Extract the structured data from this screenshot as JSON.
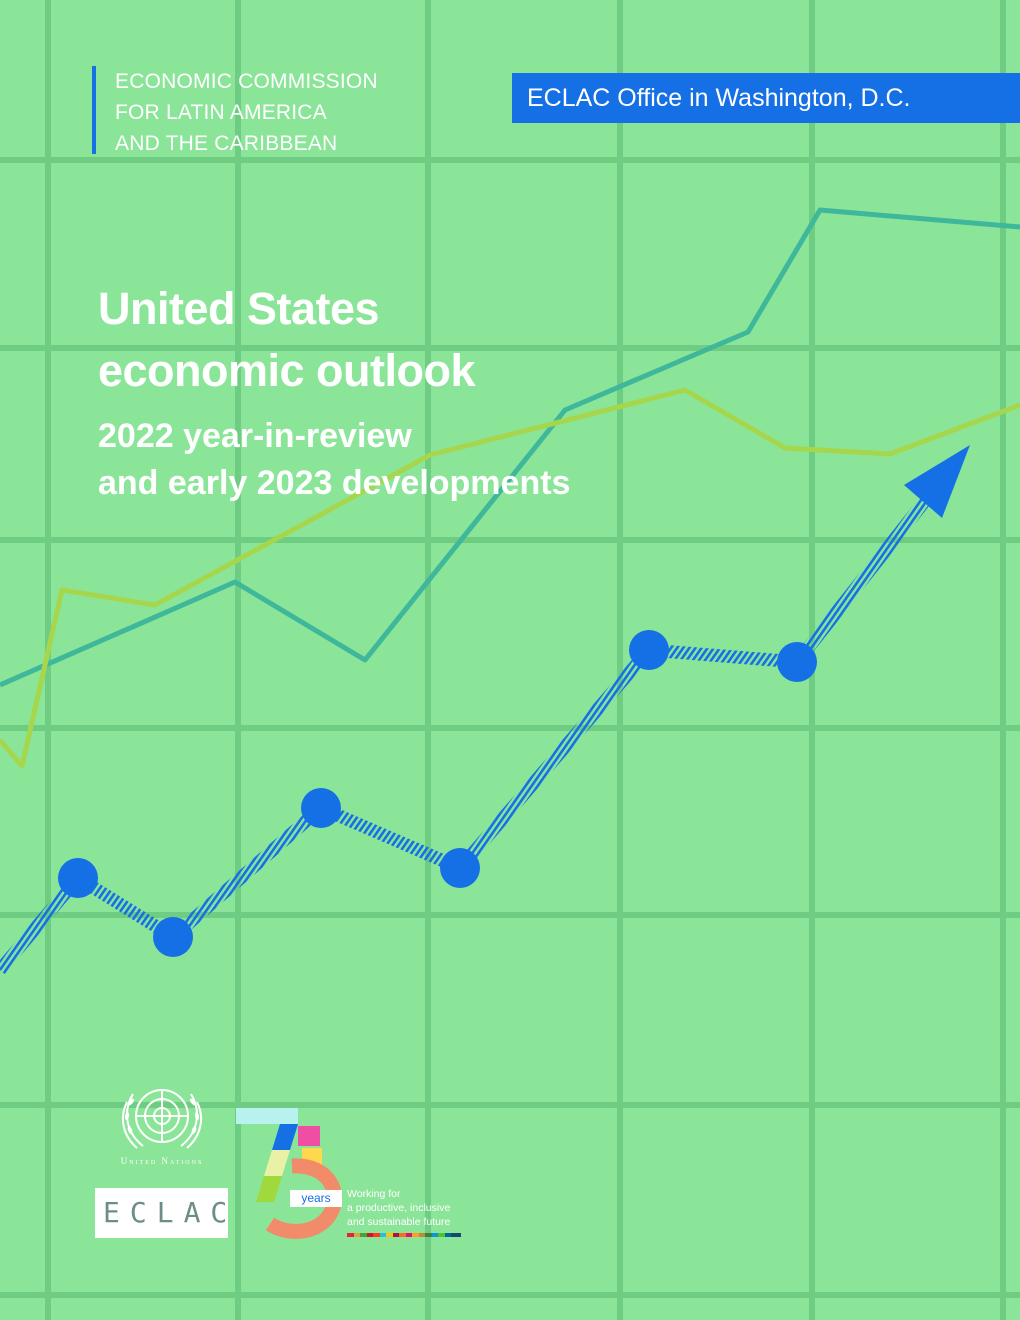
{
  "header": {
    "organization_lines": [
      "ECONOMIC COMMISSION",
      "FOR LATIN AMERICA",
      "AND THE CARIBBEAN"
    ],
    "office_label": "ECLAC Office in Washington, D.C."
  },
  "report": {
    "title_lines": [
      "United States",
      "economic outlook"
    ],
    "subtitle_lines": [
      "2022 year-in-review",
      "and early 2023 developments"
    ]
  },
  "footer": {
    "un_label": "United Nations",
    "eclac_label": "ECLAC",
    "anniversary_number": "75",
    "anniversary_years_label": "years",
    "tagline_lines": [
      "Working for",
      "a productive, inclusive",
      "and sustainable future"
    ]
  },
  "colors": {
    "background": "#8be599",
    "grid": "#6fcc83",
    "accent_blue": "#1570e6",
    "teal_line": "#3fb79a",
    "lime_line": "#a6d64c",
    "text": "#ffffff"
  },
  "icons": [
    "un-emblem-icon",
    "arrow-head-icon",
    "anniversary-75-logo"
  ]
}
